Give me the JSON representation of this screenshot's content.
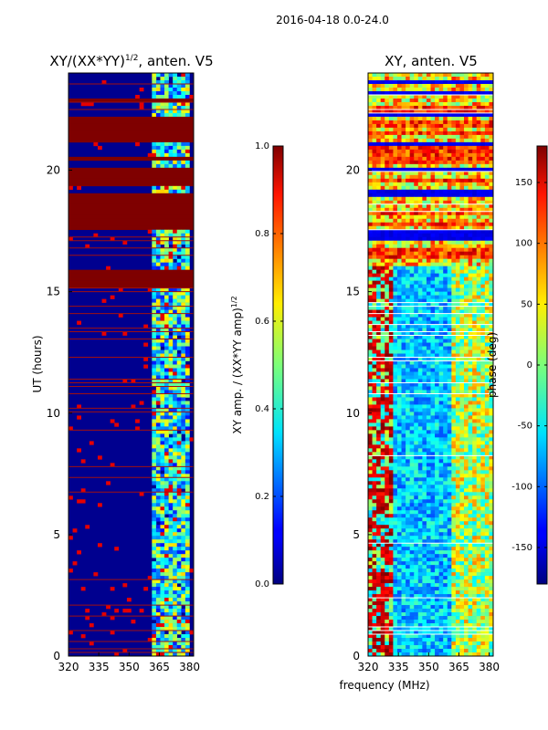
{
  "figure": {
    "suptitle": "2016-04-18 0.0-24.0",
    "xlabel_shared": "frequency (MHz)"
  },
  "chart_data": [
    {
      "type": "heatmap",
      "title": "XY/(XX*YY)^{1/2}, anten. V5",
      "title_base": "XY/(XX*YY)",
      "title_sup": "1/2",
      "title_rest": ", anten. V5",
      "xlabel": "",
      "ylabel": "UT (hours)",
      "xlim": [
        320,
        382
      ],
      "ylim": [
        0,
        24
      ],
      "xticks": [
        320,
        335,
        350,
        365,
        380
      ],
      "yticks": [
        0,
        5,
        10,
        15,
        20
      ],
      "colormap": "jet",
      "colorbar": {
        "label_base": "XY amp. / (XX*YY amp)",
        "label_sup": "1/2",
        "range": [
          0.0,
          1.0
        ],
        "ticks": [
          "0.0",
          "0.2",
          "0.4",
          "0.6",
          "0.8",
          "1.0"
        ],
        "tick_values": [
          0.0,
          0.2,
          0.4,
          0.6,
          0.8,
          1.0
        ]
      },
      "saturated_hour_bands": [
        [
          15.1,
          15.9
        ],
        [
          17.5,
          19.1
        ],
        [
          19.3,
          20.1
        ],
        [
          20.4,
          20.6
        ],
        [
          21.1,
          22.2
        ],
        [
          22.8,
          23.0
        ]
      ],
      "bright_frequency_band_MHz": [
        362,
        380
      ]
    },
    {
      "type": "heatmap",
      "title": "XY, anten. V5",
      "xlabel": "",
      "ylabel": "",
      "xlim": [
        320,
        382
      ],
      "ylim": [
        0,
        24
      ],
      "xticks": [
        320,
        335,
        350,
        365,
        380
      ],
      "yticks": [
        0,
        5,
        10,
        15,
        20
      ],
      "colormap": "jet",
      "colorbar": {
        "label": "phase (deg)",
        "range": [
          -180,
          180
        ],
        "ticks": [
          "-150",
          "-100",
          "-50",
          "0",
          "50",
          "100",
          "150"
        ],
        "tick_values": [
          -150,
          -100,
          -50,
          0,
          50,
          100,
          150
        ]
      }
    }
  ]
}
